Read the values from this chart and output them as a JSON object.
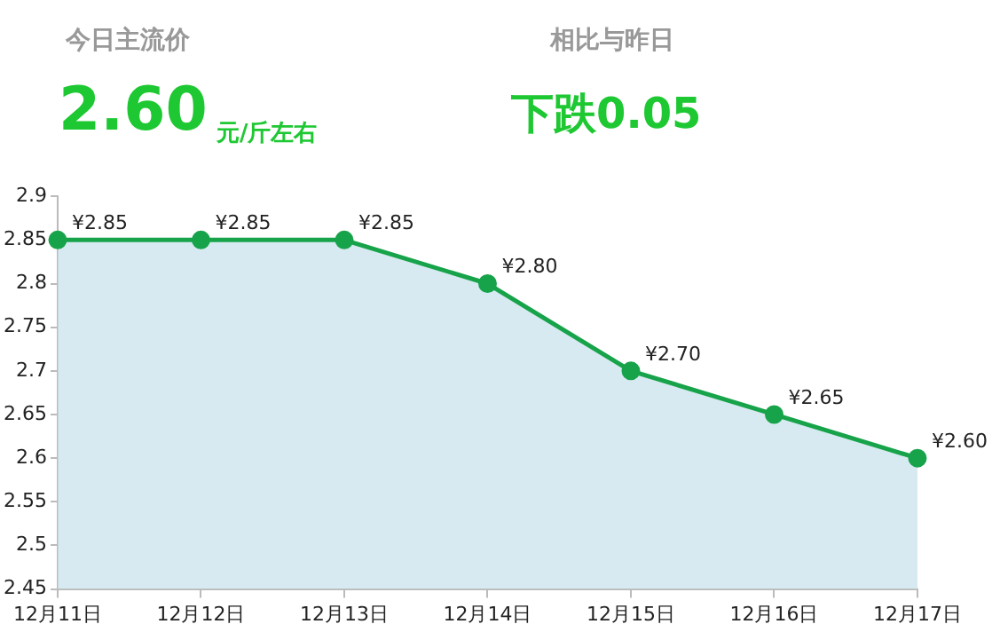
{
  "chart_data": {
    "type": "area",
    "annotations": [
      "今日主流价",
      "2.60",
      "元/斤左右",
      "相比与昨日",
      "下跌0.05"
    ],
    "categories": [
      "12月11日",
      "12月12日",
      "12月13日",
      "12月14日",
      "12月15日",
      "12月16日",
      "12月17日"
    ],
    "series": [
      {
        "color": "#17a34a",
        "values": [
          2.85,
          2.85,
          2.85,
          2.8,
          2.7,
          2.65,
          2.6
        ],
        "value_labels": [
          "¥2.85",
          "¥2.85",
          "¥2.85",
          "¥2.80",
          "¥2.70",
          "¥2.65",
          "¥2.60"
        ]
      }
    ],
    "ylim": [
      2.45,
      2.9
    ],
    "yticks": [
      2.45,
      2.5,
      2.55,
      2.6,
      2.65,
      2.7,
      2.75,
      2.8,
      2.85,
      2.9
    ],
    "marker": "circle"
  }
}
